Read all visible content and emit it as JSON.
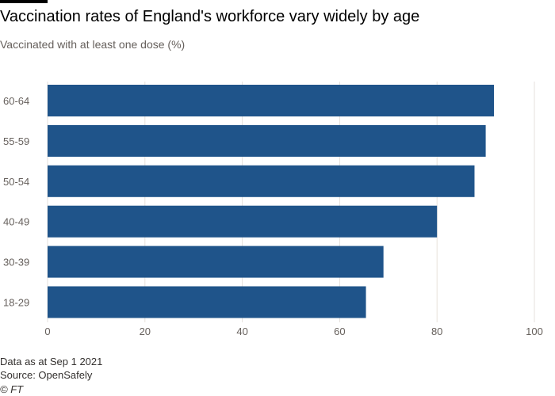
{
  "title": "Vaccination rates of England's workforce vary widely by age",
  "subtitle": "Vaccinated with at least one dose (%)",
  "footer": {
    "note": "Data as at Sep 1 2021",
    "source": "Source: OpenSafely",
    "credit": "© FT"
  },
  "colors": {
    "bar": "#1f548a",
    "grid": "#e6e1dc",
    "tick_text": "#66605c"
  },
  "chart_data": {
    "type": "bar",
    "orientation": "horizontal",
    "categories": [
      "60-64",
      "55-59",
      "50-54",
      "40-49",
      "30-39",
      "18-29"
    ],
    "values": [
      91.7,
      90.0,
      87.7,
      80.0,
      69.0,
      65.4
    ],
    "xlim": [
      0,
      100
    ],
    "xticks": [
      0,
      20,
      40,
      60,
      80,
      100
    ],
    "grid": true,
    "legend": "none"
  }
}
